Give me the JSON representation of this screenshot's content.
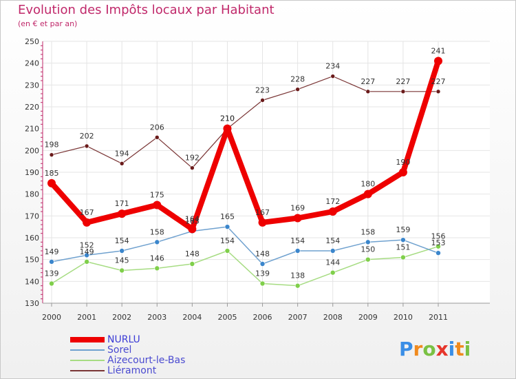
{
  "title": "Evolution des Impôts locaux par Habitant",
  "subtitle": "(en € et par an)",
  "brand": {
    "letters": [
      "P",
      "r",
      "o",
      "x",
      "i",
      "t",
      "i"
    ],
    "colors": [
      "#3a8ee6",
      "#f08a1e",
      "#7ac143",
      "#e6352b",
      "#3a8ee6",
      "#f08a1e",
      "#7ac143"
    ]
  },
  "chart_data": {
    "type": "line",
    "title": "Evolution des Impôts locaux par Habitant",
    "ylabel": "(en € et par an)",
    "xlabel": "",
    "ylim": [
      130,
      250
    ],
    "yticks": [
      130,
      140,
      150,
      160,
      170,
      180,
      190,
      200,
      210,
      220,
      230,
      240,
      250
    ],
    "x": [
      "2000",
      "2001",
      "2002",
      "2003",
      "2004",
      "2005",
      "2006",
      "2007",
      "2008",
      "2009",
      "2010",
      "2011"
    ],
    "grid": true,
    "series": [
      {
        "name": "NURLU",
        "color": "#ee0000",
        "marker": "#ee0000",
        "width": 8,
        "radius": 6,
        "values": [
          185,
          167,
          171,
          175,
          164,
          210,
          167,
          169,
          172,
          180,
          190,
          241
        ],
        "labels": [
          "185",
          "167",
          "171",
          "175",
          "164",
          "210",
          "167",
          "169",
          "172",
          "180",
          "190",
          "241"
        ]
      },
      {
        "name": "Sorel",
        "color": "#6fa1cf",
        "marker": "#3b86cc",
        "width": 1.5,
        "radius": 3.5,
        "values": [
          149,
          152,
          154,
          158,
          163,
          165,
          148,
          154,
          154,
          158,
          159,
          153
        ],
        "labels": [
          "149",
          "152",
          "154",
          "158",
          "163",
          "165",
          "148",
          "154",
          "154",
          "158",
          "159",
          "153"
        ]
      },
      {
        "name": "Aizecourt-le-Bas",
        "color": "#a6dc82",
        "marker": "#7fcf4a",
        "width": 1.5,
        "radius": 3.5,
        "values": [
          139,
          149,
          145,
          146,
          148,
          154,
          139,
          138,
          144,
          150,
          151,
          156
        ],
        "labels": [
          "139",
          "149",
          "145",
          "146",
          "148",
          "154",
          "139",
          "138",
          "144",
          "150",
          "151",
          "156"
        ]
      },
      {
        "name": "Liéramont",
        "color": "#7a3535",
        "marker": "#6a1a1a",
        "width": 1.2,
        "radius": 3,
        "values": [
          198,
          202,
          194,
          206,
          192,
          210,
          223,
          228,
          234,
          227,
          227,
          227
        ],
        "labels": [
          "198",
          "202",
          "194",
          "206",
          "192",
          "210",
          "223",
          "228",
          "234",
          "227",
          "227",
          "227"
        ]
      }
    ]
  }
}
